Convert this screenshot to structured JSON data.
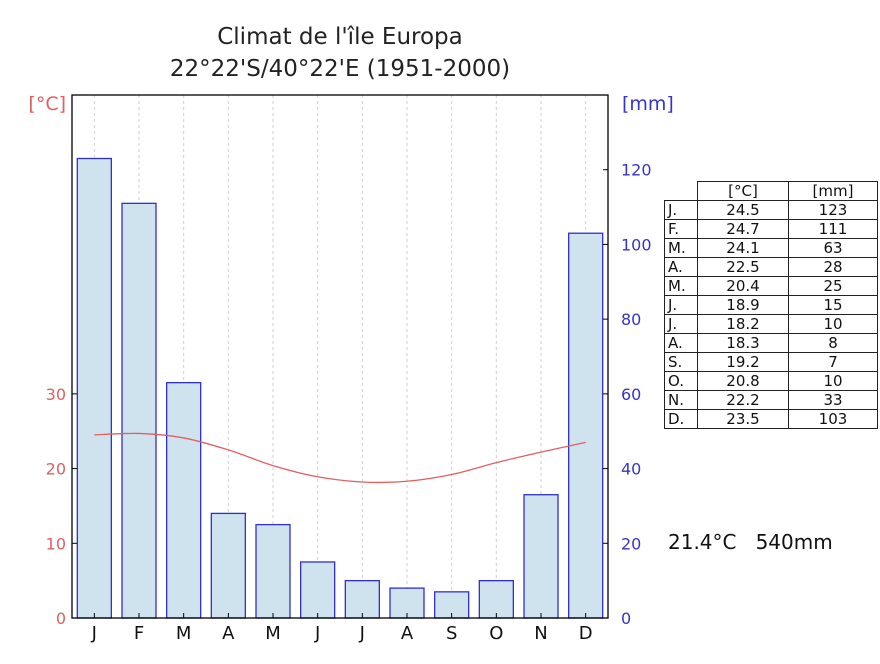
{
  "title_line1": "Climat de l'île Europa",
  "title_line2": "22°22'S/40°22'E (1951-2000)",
  "colors": {
    "temp": "#e06060",
    "precip": "#3535c8",
    "bar_fill": "#cfe3ef",
    "bar_stroke": "#2f2fd0"
  },
  "table": {
    "header_temp": "[°C]",
    "header_precip": "[mm]",
    "rows": [
      {
        "m": "J.",
        "t": "24.5",
        "p": "123"
      },
      {
        "m": "F.",
        "t": "24.7",
        "p": "111"
      },
      {
        "m": "M.",
        "t": "24.1",
        "p": "63"
      },
      {
        "m": "A.",
        "t": "22.5",
        "p": "28"
      },
      {
        "m": "M.",
        "t": "20.4",
        "p": "25"
      },
      {
        "m": "J.",
        "t": "18.9",
        "p": "15"
      },
      {
        "m": "J.",
        "t": "18.2",
        "p": "10"
      },
      {
        "m": "A.",
        "t": "18.3",
        "p": "8"
      },
      {
        "m": "S.",
        "t": "19.2",
        "p": "7"
      },
      {
        "m": "O.",
        "t": "20.8",
        "p": "10"
      },
      {
        "m": "N.",
        "t": "22.2",
        "p": "33"
      },
      {
        "m": "D.",
        "t": "23.5",
        "p": "103"
      }
    ]
  },
  "summary": "21.4°C   540mm",
  "chart_data": {
    "type": "bar",
    "title": "Climat de l'île Europa",
    "subtitle": "22°22'S/40°22'E (1951-2000)",
    "categories": [
      "J",
      "F",
      "M",
      "A",
      "M",
      "J",
      "J",
      "A",
      "S",
      "O",
      "N",
      "D"
    ],
    "series": [
      {
        "type": "bar",
        "axis": "right",
        "unit": "[mm]",
        "values": [
          123,
          111,
          63,
          28,
          25,
          15,
          10,
          8,
          7,
          10,
          33,
          103
        ]
      },
      {
        "type": "line",
        "axis": "left",
        "unit": "[°C]",
        "values": [
          24.5,
          24.7,
          24.1,
          22.5,
          20.4,
          18.9,
          18.2,
          18.3,
          19.2,
          20.8,
          22.2,
          23.5
        ]
      }
    ],
    "ylabel_left": "[°C]",
    "ylabel_right": "[mm]",
    "ylim_left": [
      0,
      70
    ],
    "ylim_right": [
      0,
      140
    ],
    "yticks_left": [
      "0",
      "10",
      "20",
      "30"
    ],
    "yticks_right": [
      "0",
      "20",
      "40",
      "60",
      "80",
      "100",
      "120"
    ],
    "grid": "vertical dashed",
    "annual_mean_temp": "21.4°C",
    "annual_precip": "540mm"
  }
}
